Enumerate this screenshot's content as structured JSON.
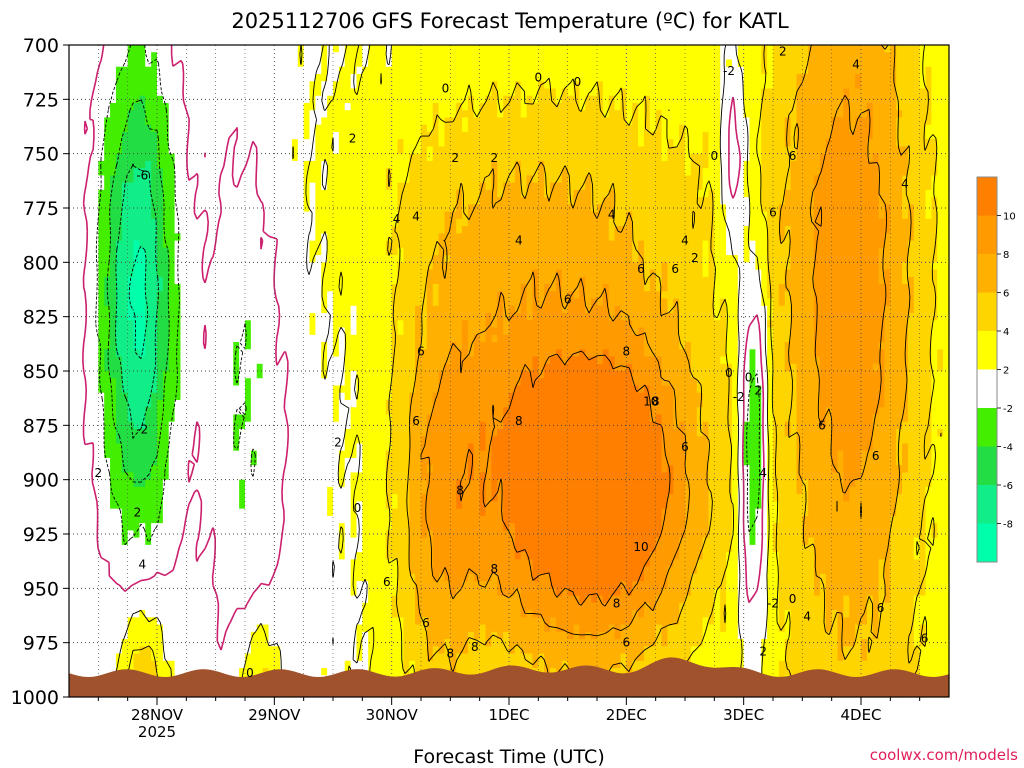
{
  "chart_data": {
    "type": "heatmap",
    "title": "2025112706 GFS Forecast Temperature (ºC) for KATL",
    "xlabel": "Forecast Time (UTC)",
    "ylabel": "",
    "credit": "coolwx.com/models",
    "x_ticks": [
      {
        "label": "28NOV",
        "sub": "2025",
        "hours": 18
      },
      {
        "label": "29NOV",
        "sub": "",
        "hours": 42
      },
      {
        "label": "30NOV",
        "sub": "",
        "hours": 66
      },
      {
        "label": "1DEC",
        "sub": "",
        "hours": 90
      },
      {
        "label": "2DEC",
        "sub": "",
        "hours": 114
      },
      {
        "label": "3DEC",
        "sub": "",
        "hours": 138
      },
      {
        "label": "4DEC",
        "sub": "",
        "hours": 162
      }
    ],
    "xlim": [
      0,
      180
    ],
    "y_ticks": [
      "700",
      "725",
      "750",
      "775",
      "800",
      "825",
      "850",
      "875",
      "900",
      "925",
      "950",
      "975",
      "1000"
    ],
    "ylim": [
      1000,
      700
    ],
    "colorbar": {
      "labels": [
        "10",
        "8",
        "6",
        "4",
        "2",
        "-2",
        "-4",
        "-6",
        "-8"
      ],
      "bins": [
        {
          "min": 10,
          "max": 12,
          "color": "#ff7f00"
        },
        {
          "min": 8,
          "max": 10,
          "color": "#ff9a00"
        },
        {
          "min": 6,
          "max": 8,
          "color": "#ffb000"
        },
        {
          "min": 4,
          "max": 6,
          "color": "#ffd500"
        },
        {
          "min": 2,
          "max": 4,
          "color": "#ffff00"
        },
        {
          "min": -2,
          "max": 2,
          "color": "#ffffff"
        },
        {
          "min": -4,
          "max": -2,
          "color": "#44ee00"
        },
        {
          "min": -6,
          "max": -4,
          "color": "#22dd44"
        },
        {
          "min": -8,
          "max": -6,
          "color": "#11ee88"
        },
        {
          "min": -10,
          "max": -8,
          "color": "#00ffaa"
        }
      ]
    },
    "terrain_color": "#a0522d",
    "freezing_line_color": "#cc1f6e",
    "contour_labels": [
      {
        "text": "2",
        "hours": 146,
        "p": 703
      },
      {
        "text": "0",
        "hours": 104,
        "p": 717
      },
      {
        "text": "0",
        "hours": 77,
        "p": 720
      },
      {
        "text": "0",
        "hours": 96,
        "p": 715
      },
      {
        "text": "-2",
        "hours": 135,
        "p": 712
      },
      {
        "text": "4",
        "hours": 161,
        "p": 709
      },
      {
        "text": "2",
        "hours": 58,
        "p": 743
      },
      {
        "text": "2",
        "hours": 79,
        "p": 752
      },
      {
        "text": "2",
        "hours": 87,
        "p": 752
      },
      {
        "text": "0",
        "hours": 132,
        "p": 751
      },
      {
        "text": "6",
        "hours": 148,
        "p": 751
      },
      {
        "text": "4",
        "hours": 171,
        "p": 764
      },
      {
        "text": "-6",
        "hours": 15,
        "p": 760
      },
      {
        "text": "4",
        "hours": 67,
        "p": 780
      },
      {
        "text": "4",
        "hours": 71,
        "p": 779
      },
      {
        "text": "4",
        "hours": 111,
        "p": 778
      },
      {
        "text": "4",
        "hours": 126,
        "p": 790
      },
      {
        "text": "6",
        "hours": 144,
        "p": 777
      },
      {
        "text": "4",
        "hours": 92,
        "p": 790
      },
      {
        "text": "2",
        "hours": 128,
        "p": 798
      },
      {
        "text": "6",
        "hours": 124,
        "p": 803
      },
      {
        "text": "6",
        "hours": 117,
        "p": 803
      },
      {
        "text": "6",
        "hours": 102,
        "p": 817
      },
      {
        "text": "6",
        "hours": 72,
        "p": 841
      },
      {
        "text": "8",
        "hours": 114,
        "p": 841
      },
      {
        "text": "10",
        "hours": 119,
        "p": 864
      },
      {
        "text": "8",
        "hours": 120,
        "p": 864
      },
      {
        "text": "-2",
        "hours": 137,
        "p": 862
      },
      {
        "text": "0",
        "hours": 135,
        "p": 851
      },
      {
        "text": "0",
        "hours": 139,
        "p": 853
      },
      {
        "text": "2",
        "hours": 141,
        "p": 859
      },
      {
        "text": "2",
        "hours": 55,
        "p": 883
      },
      {
        "text": "8",
        "hours": 92,
        "p": 873
      },
      {
        "text": "6",
        "hours": 71,
        "p": 873
      },
      {
        "text": "6",
        "hours": 126,
        "p": 885
      },
      {
        "text": "6",
        "hours": 154,
        "p": 875
      },
      {
        "text": "6",
        "hours": 165,
        "p": 889
      },
      {
        "text": "-2",
        "hours": 15,
        "p": 877
      },
      {
        "text": "2",
        "hours": 6,
        "p": 897
      },
      {
        "text": "4",
        "hours": 142,
        "p": 897
      },
      {
        "text": "2",
        "hours": 14,
        "p": 915
      },
      {
        "text": "0",
        "hours": 59,
        "p": 913
      },
      {
        "text": "8",
        "hours": 80,
        "p": 905
      },
      {
        "text": "8",
        "hours": 87,
        "p": 941
      },
      {
        "text": "10",
        "hours": 117,
        "p": 931
      },
      {
        "text": "4",
        "hours": 15,
        "p": 939
      },
      {
        "text": "6",
        "hours": 65,
        "p": 947
      },
      {
        "text": "-2",
        "hours": 144,
        "p": 957
      },
      {
        "text": "0",
        "hours": 148,
        "p": 955
      },
      {
        "text": "4",
        "hours": 151,
        "p": 963
      },
      {
        "text": "6",
        "hours": 166,
        "p": 959
      },
      {
        "text": "6",
        "hours": 175,
        "p": 973
      },
      {
        "text": "8",
        "hours": 112,
        "p": 957
      },
      {
        "text": "6",
        "hours": 73,
        "p": 966
      },
      {
        "text": "8",
        "hours": 78,
        "p": 980
      },
      {
        "text": "8",
        "hours": 83,
        "p": 977
      },
      {
        "text": "6",
        "hours": 114,
        "p": 975
      },
      {
        "text": "2",
        "hours": 142,
        "p": 979
      },
      {
        "text": "0",
        "hours": 37,
        "p": 989
      }
    ]
  }
}
